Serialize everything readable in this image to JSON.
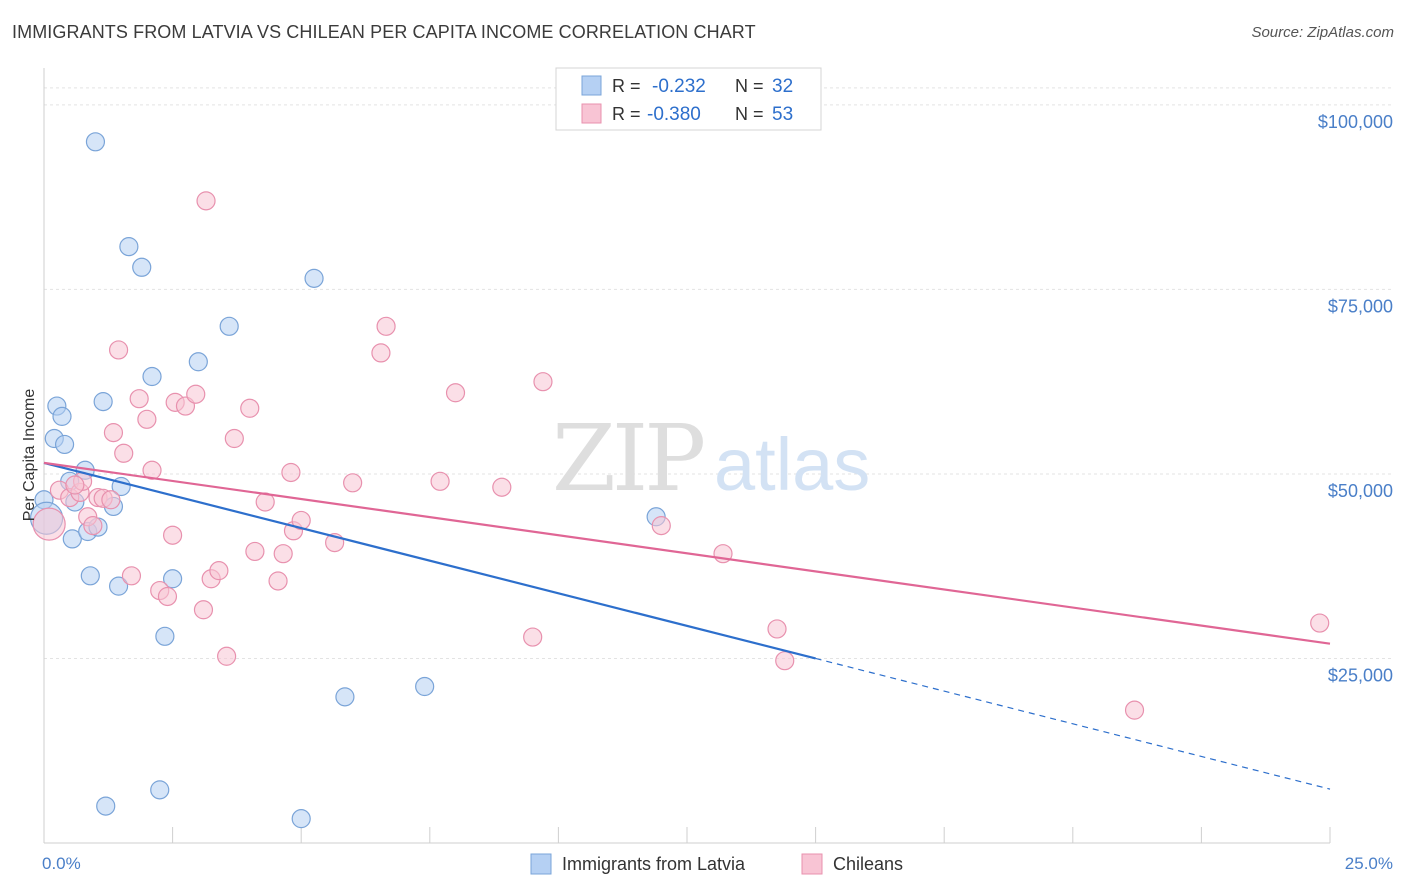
{
  "title": "IMMIGRANTS FROM LATVIA VS CHILEAN PER CAPITA INCOME CORRELATION CHART",
  "source": "Source: ZipAtlas.com",
  "watermark": {
    "part1": "ZIP",
    "part2": "atlas"
  },
  "chart_data": {
    "type": "scatter",
    "title": "IMMIGRANTS FROM LATVIA VS CHILEAN PER CAPITA INCOME CORRELATION CHART",
    "ylabel": "Per Capita Income",
    "xlabel": "",
    "xlim": [
      0,
      25
    ],
    "ylim": [
      0,
      105000
    ],
    "x_tick_labels": {
      "min": "0.0%",
      "max": "25.0%"
    },
    "y_ticks": [
      {
        "value": 25000,
        "label": "$25,000"
      },
      {
        "value": 50000,
        "label": "$50,000"
      },
      {
        "value": 75000,
        "label": "$75,000"
      },
      {
        "value": 100000,
        "label": "$100,000"
      }
    ],
    "grid": true,
    "legend_position": "bottom-center",
    "stats_legend": [
      {
        "r_label": "R =",
        "r_value": "-0.232",
        "n_label": "N =",
        "n_value": "32",
        "color": "#a9c8f0"
      },
      {
        "r_label": "R =",
        "r_value": "-0.380",
        "n_label": "N =",
        "n_value": "53",
        "color": "#f6b8cd"
      }
    ],
    "series": [
      {
        "name": "Immigrants from Latvia",
        "fill": "#b5d0f3",
        "stroke": "#7aa4d8",
        "line_color": "#2d6fcc",
        "trend": {
          "x0": 0,
          "y0": 51500,
          "x1": 15,
          "y1": 25000,
          "dash_to_x": 25,
          "dash_to_y": 7300
        },
        "points": [
          [
            0.0,
            46500
          ],
          [
            0.25,
            59200
          ],
          [
            0.35,
            57800
          ],
          [
            0.2,
            54800
          ],
          [
            0.4,
            54000
          ],
          [
            0.5,
            49000
          ],
          [
            0.55,
            41200
          ],
          [
            0.6,
            46200
          ],
          [
            0.8,
            50500
          ],
          [
            0.85,
            42200
          ],
          [
            0.9,
            36200
          ],
          [
            1.05,
            42800
          ],
          [
            1.0,
            95000
          ],
          [
            1.15,
            59800
          ],
          [
            1.35,
            45600
          ],
          [
            1.5,
            48300
          ],
          [
            1.45,
            34800
          ],
          [
            1.65,
            80800
          ],
          [
            1.9,
            78000
          ],
          [
            2.1,
            63200
          ],
          [
            2.35,
            28000
          ],
          [
            2.5,
            35800
          ],
          [
            3.0,
            65200
          ],
          [
            3.6,
            70000
          ],
          [
            5.25,
            76500
          ],
          [
            5.85,
            19800
          ],
          [
            7.4,
            21200
          ],
          [
            11.9,
            44200
          ],
          [
            1.2,
            5000
          ],
          [
            2.25,
            7200
          ],
          [
            5.0,
            3300
          ],
          [
            0.05,
            44000
          ]
        ]
      },
      {
        "name": "Chileans",
        "fill": "#f8c4d4",
        "stroke": "#e891ae",
        "line_color": "#e06695",
        "trend": {
          "x0": 0,
          "y0": 51500,
          "x1": 25,
          "y1": 27000
        },
        "points": [
          [
            0.1,
            43200
          ],
          [
            0.3,
            47800
          ],
          [
            0.5,
            46800
          ],
          [
            0.7,
            47500
          ],
          [
            0.75,
            49000
          ],
          [
            0.85,
            44200
          ],
          [
            0.95,
            43000
          ],
          [
            1.05,
            46800
          ],
          [
            1.15,
            46700
          ],
          [
            1.3,
            46500
          ],
          [
            1.35,
            55600
          ],
          [
            1.45,
            66800
          ],
          [
            1.55,
            52800
          ],
          [
            1.7,
            36200
          ],
          [
            1.85,
            60200
          ],
          [
            2.0,
            57400
          ],
          [
            2.1,
            50500
          ],
          [
            2.25,
            34200
          ],
          [
            2.4,
            33400
          ],
          [
            2.55,
            59700
          ],
          [
            2.5,
            41700
          ],
          [
            2.75,
            59200
          ],
          [
            2.95,
            60800
          ],
          [
            3.1,
            31600
          ],
          [
            3.15,
            87000
          ],
          [
            3.25,
            35800
          ],
          [
            3.4,
            36900
          ],
          [
            3.55,
            25300
          ],
          [
            3.7,
            54800
          ],
          [
            4.0,
            58900
          ],
          [
            4.1,
            39500
          ],
          [
            4.3,
            46200
          ],
          [
            4.55,
            35500
          ],
          [
            4.65,
            39200
          ],
          [
            4.8,
            50200
          ],
          [
            4.85,
            42300
          ],
          [
            5.0,
            43700
          ],
          [
            5.65,
            40700
          ],
          [
            6.0,
            48800
          ],
          [
            6.55,
            66400
          ],
          [
            6.65,
            70000
          ],
          [
            7.7,
            49000
          ],
          [
            8.0,
            61000
          ],
          [
            8.9,
            48200
          ],
          [
            9.5,
            27900
          ],
          [
            9.7,
            62500
          ],
          [
            12.0,
            43000
          ],
          [
            13.2,
            39200
          ],
          [
            14.25,
            29000
          ],
          [
            14.4,
            24700
          ],
          [
            21.2,
            18000
          ],
          [
            24.8,
            29800
          ],
          [
            0.6,
            48500
          ]
        ]
      }
    ]
  }
}
